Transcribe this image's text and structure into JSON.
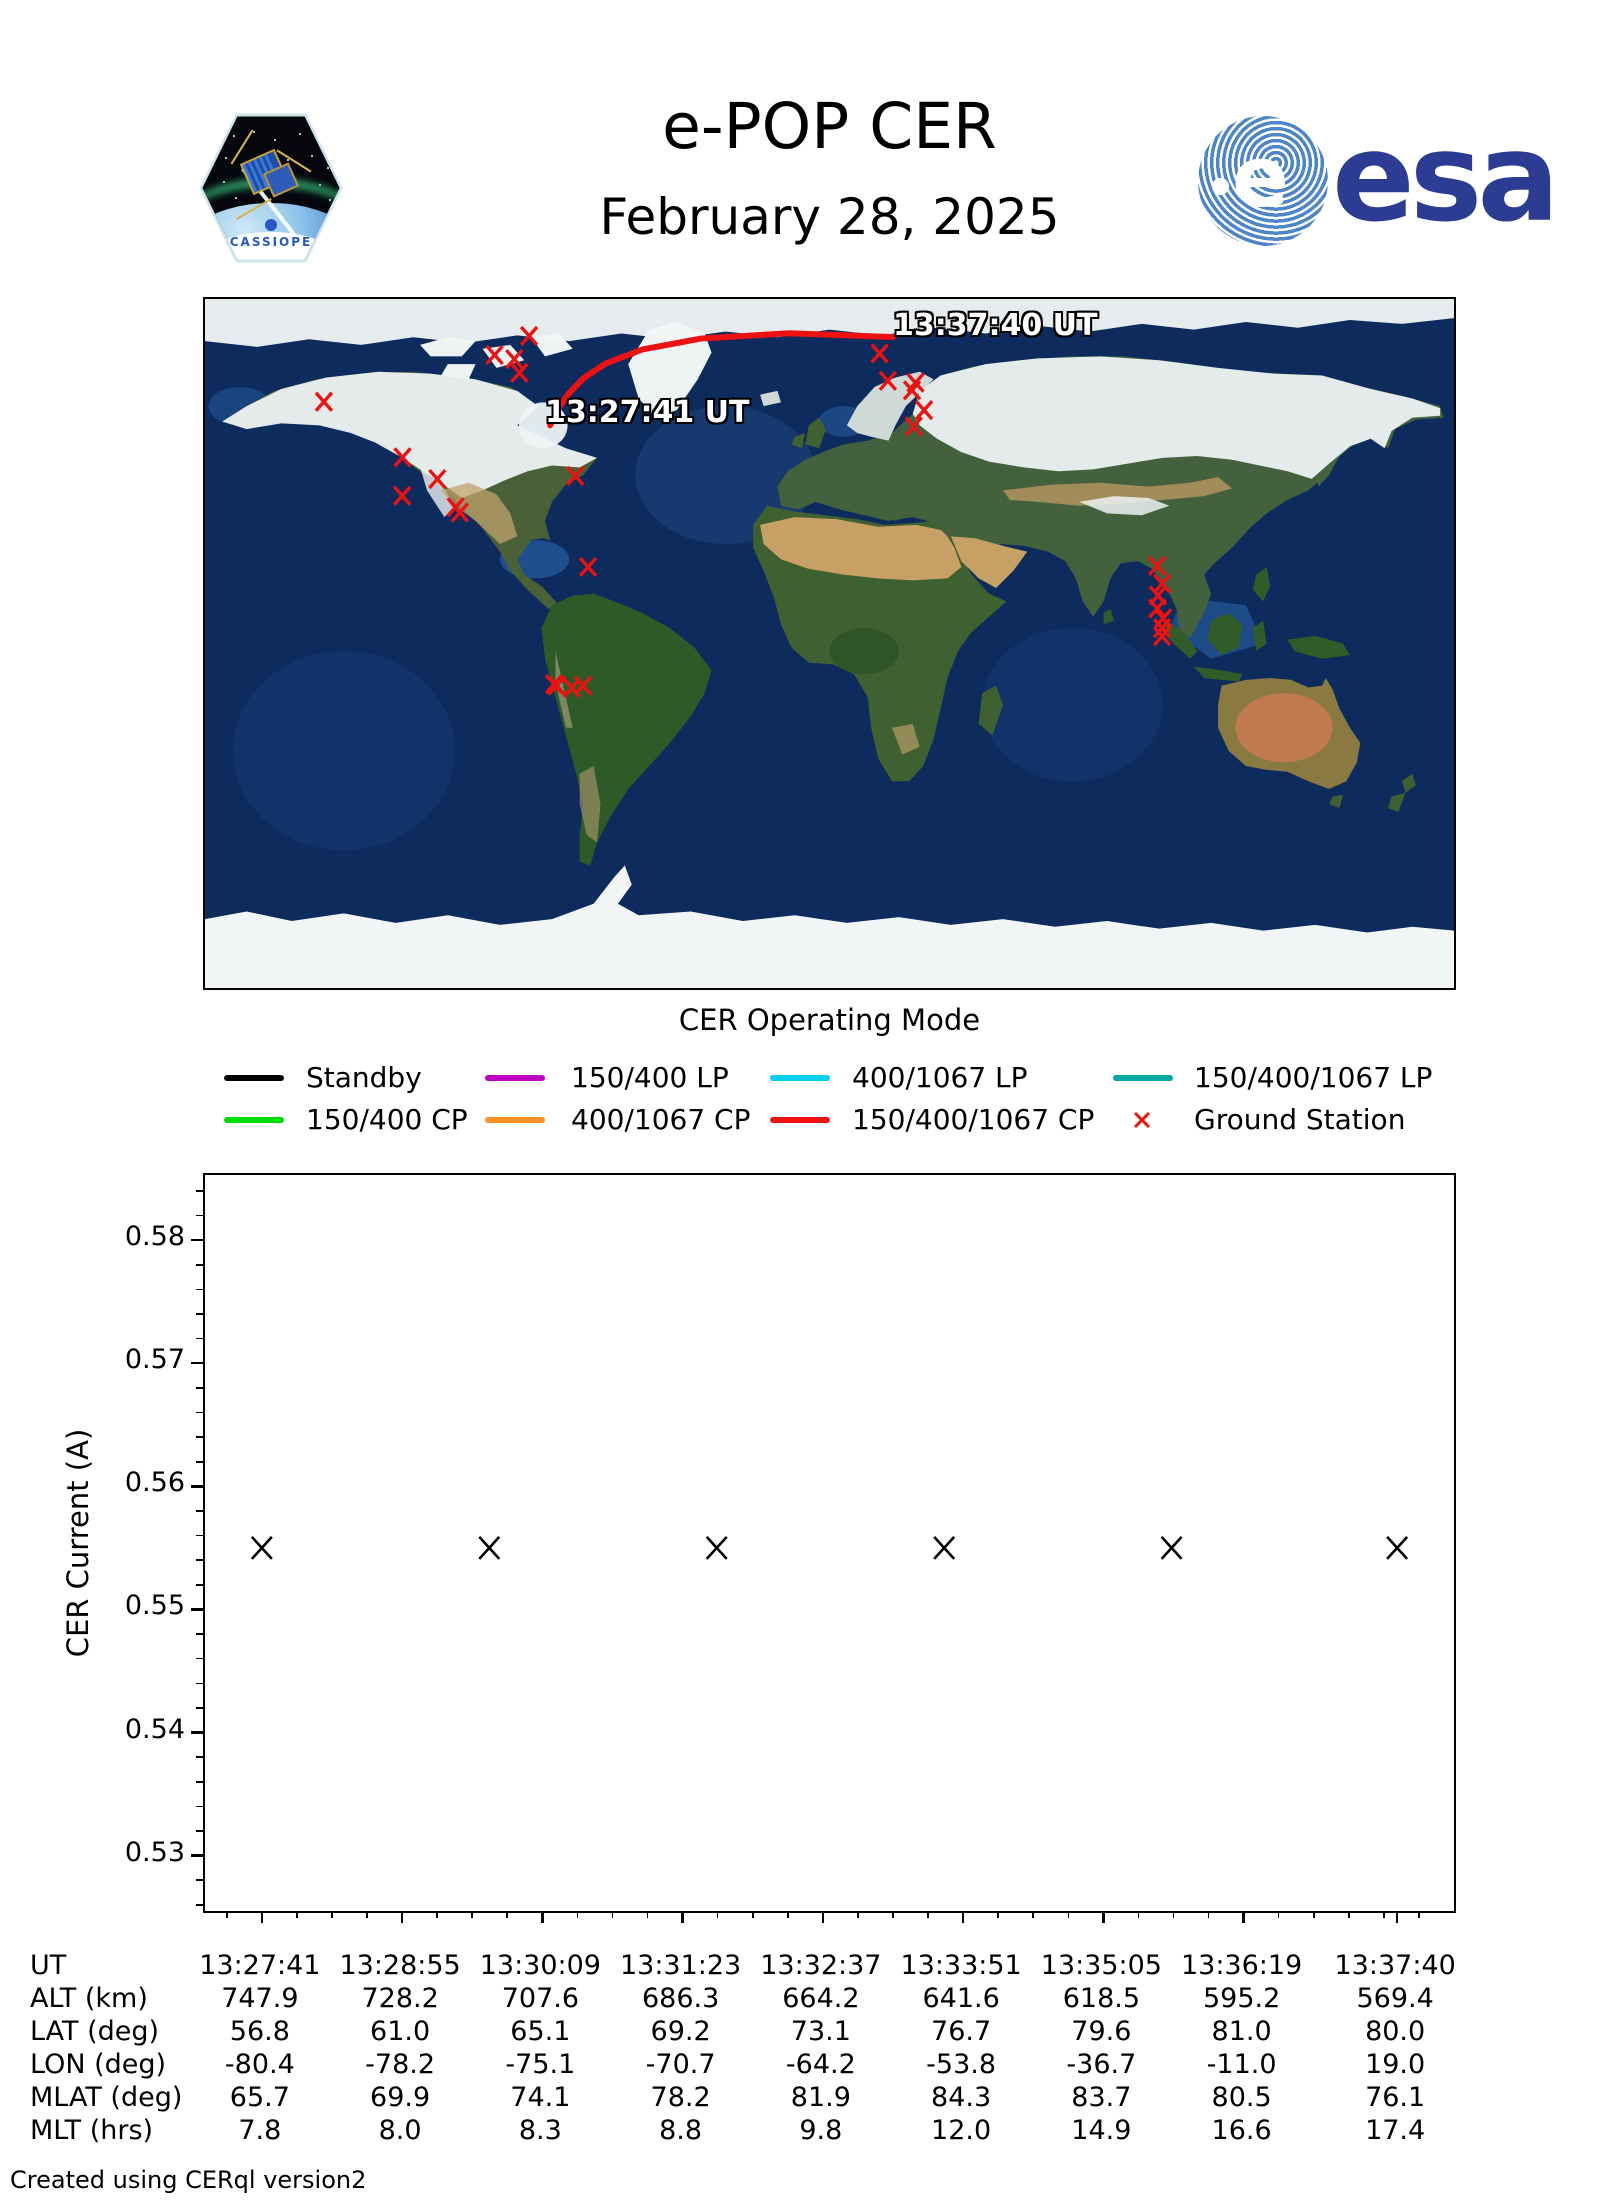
{
  "header": {
    "title": "e-POP CER",
    "date": "February 28, 2025",
    "esa_wordmark": "esa",
    "esa_globe_letter": "e",
    "cassiope_label": "CASSIOPE",
    "esa_blue": "#2b3c92"
  },
  "map": {
    "xlabel": "CER Operating Mode",
    "start_time_label": "13:27:41 UT",
    "end_time_label": "13:37:40 UT",
    "track_color": "#ee1111",
    "station_color": "#ee1111",
    "track_lonlat": [
      [
        -80.4,
        56.8
      ],
      [
        -78.2,
        61.0
      ],
      [
        -75.1,
        65.1
      ],
      [
        -70.7,
        69.2
      ],
      [
        -64.2,
        73.1
      ],
      [
        -53.8,
        76.7
      ],
      [
        -36.7,
        79.6
      ],
      [
        -11.0,
        81.0
      ],
      [
        19.0,
        80.0
      ]
    ],
    "ground_stations_lonlat": [
      [
        -86.5,
        80.3
      ],
      [
        -96.5,
        75.3
      ],
      [
        -90.8,
        74.2
      ],
      [
        -89.3,
        70.6
      ],
      [
        -146.0,
        63.0
      ],
      [
        -123.2,
        48.4
      ],
      [
        -113.1,
        42.7
      ],
      [
        -123.3,
        38.3
      ],
      [
        -107.8,
        35.3
      ],
      [
        -106.6,
        33.9
      ],
      [
        -73.1,
        43.5
      ],
      [
        -69.4,
        19.6
      ],
      [
        15.1,
        75.7
      ],
      [
        17.5,
        68.5
      ],
      [
        25.5,
        68.0
      ],
      [
        24.5,
        66.0
      ],
      [
        28.0,
        60.8
      ],
      [
        25.0,
        56.5
      ],
      [
        -79.3,
        -11.2
      ],
      [
        -78.5,
        -11.6
      ],
      [
        -74.1,
        -12.2
      ],
      [
        -70.9,
        -11.6
      ],
      [
        95.6,
        19.9
      ],
      [
        97.0,
        15.2
      ],
      [
        95.8,
        12.1
      ],
      [
        95.6,
        8.7
      ],
      [
        97.3,
        6.1
      ],
      [
        97.0,
        3.5
      ],
      [
        97.0,
        1.4
      ]
    ]
  },
  "legend": {
    "rows": [
      [
        {
          "label": "Standby",
          "color": "#000000",
          "type": "line"
        },
        {
          "label": "150/400 LP",
          "color": "#c000c0",
          "type": "line"
        },
        {
          "label": "400/1067 LP",
          "color": "#00d0ee",
          "type": "line"
        },
        {
          "label": "150/400/1067 LP",
          "color": "#00a8a4",
          "type": "line"
        }
      ],
      [
        {
          "label": "150/400 CP",
          "color": "#00dd00",
          "type": "line"
        },
        {
          "label": "400/1067 CP",
          "color": "#ff9021",
          "type": "line"
        },
        {
          "label": "150/400/1067 CP",
          "color": "#ee1111",
          "type": "line"
        },
        {
          "label": "Ground Station",
          "color": "#ee1111",
          "type": "marker"
        }
      ]
    ]
  },
  "chart_data": {
    "type": "scatter",
    "marker": "x",
    "marker_color": "#000000",
    "title": "",
    "xlabel": "",
    "ylabel": "CER Current (A)",
    "ytick_labels": [
      "0.53",
      "0.54",
      "0.55",
      "0.56",
      "0.57",
      "0.58"
    ],
    "yticks": [
      0.53,
      0.54,
      0.55,
      0.56,
      0.57,
      0.58
    ],
    "ylim": [
      0.5255,
      0.5853
    ],
    "y_minor_step": 0.002,
    "xlim_seconds": [
      -30,
      629
    ],
    "xtick_seconds": [
      0,
      74,
      148,
      222,
      296,
      370,
      444,
      518,
      599
    ],
    "xtick_labels": [
      "13:27:41",
      "13:28:55",
      "13:30:09",
      "13:31:23",
      "13:32:37",
      "13:33:51",
      "13:35:05",
      "13:36:19",
      "13:37:40"
    ],
    "x_minor_step_seconds": 18.5,
    "points_seconds": [
      0,
      120,
      240,
      360,
      480,
      599
    ],
    "values": [
      0.555,
      0.555,
      0.555,
      0.555,
      0.555,
      0.555
    ],
    "grid": false,
    "legend_position": "above"
  },
  "table": {
    "rows": [
      {
        "label": "UT",
        "values": [
          "13:27:41",
          "13:28:55",
          "13:30:09",
          "13:31:23",
          "13:32:37",
          "13:33:51",
          "13:35:05",
          "13:36:19",
          "13:37:40"
        ]
      },
      {
        "label": "ALT (km)",
        "values": [
          "747.9",
          "728.2",
          "707.6",
          "686.3",
          "664.2",
          "641.6",
          "618.5",
          "595.2",
          "569.4"
        ]
      },
      {
        "label": "LAT (deg)",
        "values": [
          "56.8",
          "61.0",
          "65.1",
          "69.2",
          "73.1",
          "76.7",
          "79.6",
          "81.0",
          "80.0"
        ]
      },
      {
        "label": "LON (deg)",
        "values": [
          "-80.4",
          "-78.2",
          "-75.1",
          "-70.7",
          "-64.2",
          "-53.8",
          "-36.7",
          "-11.0",
          "19.0"
        ]
      },
      {
        "label": "MLAT (deg)",
        "values": [
          "65.7",
          "69.9",
          "74.1",
          "78.2",
          "81.9",
          "84.3",
          "83.7",
          "80.5",
          "76.1"
        ]
      },
      {
        "label": "MLT (hrs)",
        "values": [
          "7.8",
          "8.0",
          "8.3",
          "8.8",
          "9.8",
          "12.0",
          "14.9",
          "16.6",
          "17.4"
        ]
      }
    ]
  },
  "footer": {
    "credit": "Created using CERql version2"
  }
}
